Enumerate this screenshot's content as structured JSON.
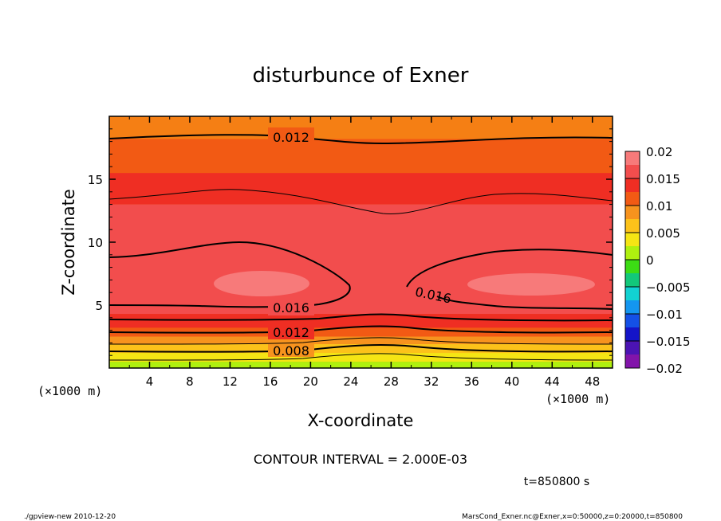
{
  "chart_data": {
    "type": "heatmap",
    "title": "disturbunce of Exner",
    "xlabel": "X-coordinate",
    "ylabel": "Z-coordinate",
    "x_unit_left": "(×1000 m)",
    "x_unit_right": "(×1000 m)",
    "xlim": [
      0,
      50
    ],
    "ylim": [
      0,
      20
    ],
    "x_ticks": [
      "4",
      "8",
      "12",
      "16",
      "20",
      "24",
      "28",
      "32",
      "36",
      "40",
      "44",
      "48"
    ],
    "y_ticks": [
      "5",
      "10",
      "15"
    ],
    "contour_labels": [
      "0.012",
      "0.016",
      "0.016",
      "0.012",
      "0.008"
    ],
    "colorbar": {
      "ticks": [
        "0.02",
        "0.015",
        "0.01",
        "0.005",
        "0",
        "−0.005",
        "−0.01",
        "−0.015",
        "−0.02"
      ],
      "colors": [
        "#f77a7a",
        "#f24d4d",
        "#ef2e23",
        "#f25a14",
        "#f7931e",
        "#fcc21a",
        "#f5e514",
        "#aff00f",
        "#3cdc14",
        "#12c87a",
        "#12d2d2",
        "#1496f0",
        "#1450e6",
        "#1414c8",
        "#4b14b4",
        "#8214aa"
      ]
    },
    "bands": [
      {
        "z": 0.0,
        "color": "#aff00f"
      },
      {
        "z": 0.5,
        "color": "#f5e514"
      },
      {
        "z": 1.2,
        "color": "#fcc21a"
      },
      {
        "z": 1.9,
        "color": "#f7931e"
      },
      {
        "z": 2.5,
        "color": "#f25a14"
      },
      {
        "z": 3.2,
        "color": "#ef2e23"
      },
      {
        "z": 4.3,
        "color": "#f24d4d"
      },
      {
        "z": 13.0,
        "color": "#ef2e23"
      },
      {
        "z": 15.5,
        "color": "#f25a14"
      }
    ],
    "footer_interval": "CONTOUR INTERVAL = 2.000E-03",
    "time_label": "t=850800  s",
    "footer_left": "./gpview-new  2010-12-20",
    "footer_right": "MarsCond_Exner.nc@Exner,x=0:50000,z=0:20000,t=850800"
  }
}
